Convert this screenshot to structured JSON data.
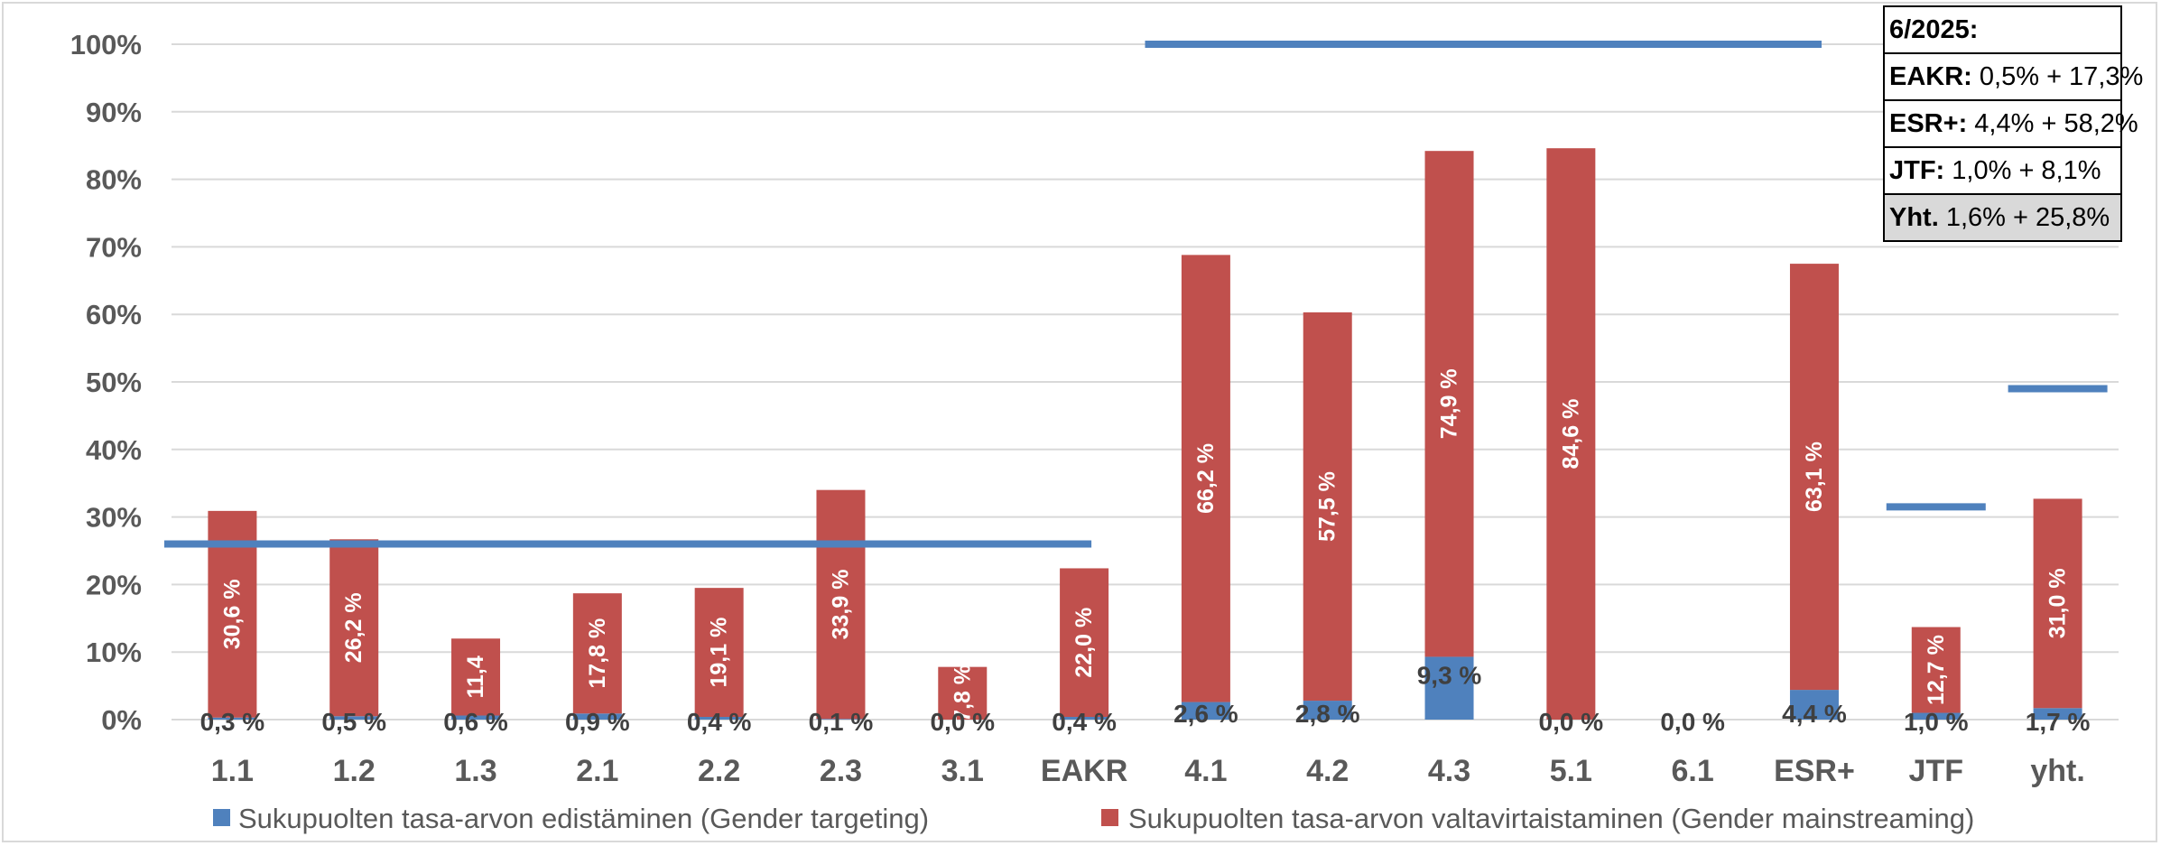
{
  "chart_data": {
    "type": "bar",
    "stacked": true,
    "categories": [
      "1.1",
      "1.2",
      "1.3",
      "2.1",
      "2.2",
      "2.3",
      "3.1",
      "EAKR",
      "4.1",
      "4.2",
      "4.3",
      "5.1",
      "6.1",
      "ESR+",
      "JTF",
      "yht."
    ],
    "series": [
      {
        "name": "Sukupuolten tasa-arvon edistäminen (Gender targeting)",
        "color": "#4f81bd",
        "values": [
          0.3,
          0.5,
          0.6,
          0.9,
          0.4,
          0.1,
          0.0,
          0.4,
          2.6,
          2.8,
          9.3,
          0.0,
          0.0,
          4.4,
          1.0,
          1.7
        ],
        "labels": [
          "0,3 %",
          "0,5 %",
          "0,6 %",
          "0,9 %",
          "0,4 %",
          "0,1 %",
          "0,0 %",
          "0,4 %",
          "2,6 %",
          "2,8 %",
          "9,3 %",
          "0,0 %",
          "0,0 %",
          "4,4 %",
          "1,0 %",
          "1,7 %"
        ]
      },
      {
        "name": "Sukupuolten tasa-arvon valtavirtaistaminen (Gender mainstreaming)",
        "color": "#c0504d",
        "values": [
          30.6,
          26.2,
          11.4,
          17.8,
          19.1,
          33.9,
          7.8,
          22.0,
          66.2,
          57.5,
          74.9,
          84.6,
          0.0,
          63.1,
          12.7,
          31.0
        ],
        "labels": [
          "30,6 %",
          "26,2 %",
          "11,4",
          "17,8 %",
          "19,1 %",
          "33,9 %",
          "7,8 %",
          "22,0 %",
          "66,2 %",
          "57,5 %",
          "74,9 %",
          "84,6 %",
          "",
          "63,1 %",
          "12,7 %",
          "31,0 %"
        ]
      }
    ],
    "target_lines": [
      {
        "from": "1.1",
        "to": "EAKR",
        "value": 26
      },
      {
        "from": "4.1",
        "to": "ESR+",
        "value": 100
      },
      {
        "from": "JTF",
        "to": "JTF",
        "value": 31.5
      },
      {
        "from": "yht.",
        "to": "yht.",
        "value": 49
      }
    ],
    "line_color": "#4f81bd",
    "y_ticks": [
      "0%",
      "10%",
      "20%",
      "30%",
      "40%",
      "50%",
      "60%",
      "70%",
      "80%",
      "90%",
      "100%"
    ],
    "ylim": [
      0,
      100
    ],
    "grid": true,
    "legend_position": "bottom"
  },
  "info_box": {
    "title": "6/2025:",
    "rows": [
      {
        "key": "EAKR:",
        "value": "0,5% + 17,3%"
      },
      {
        "key": "ESR+:",
        "value": "4,4% + 58,2%"
      },
      {
        "key": "JTF:",
        "value": "1,0% + 8,1%"
      },
      {
        "key": "Yht.",
        "value": "1,6% + 25,8%"
      }
    ]
  }
}
